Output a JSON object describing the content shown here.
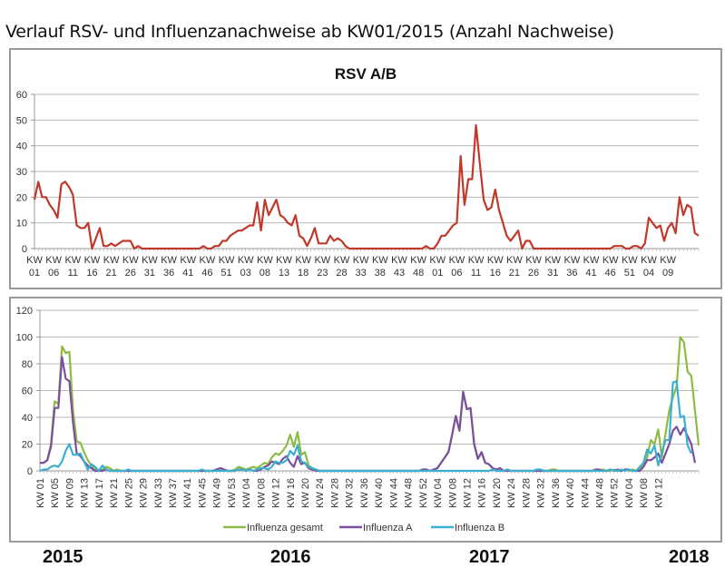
{
  "page": {
    "title": "Verlauf RSV- und Influenzanachweise ab KW01/2015 (Anzahl Nachweise)",
    "years": [
      "2015",
      "2016",
      "2017",
      "2018"
    ]
  },
  "colors": {
    "rsv": "#c0392b",
    "influenza_gesamt": "#8dbb45",
    "influenza_a": "#7b4f9e",
    "influenza_b": "#3ab0d0",
    "grid": "#b8b8b8",
    "axis_text": "#333333"
  },
  "chart_data": [
    {
      "type": "line",
      "title": "RSV A/B",
      "xlabel": "",
      "ylabel": "",
      "ylim": [
        0,
        60
      ],
      "yticks": [
        "0",
        "10",
        "20",
        "30",
        "40",
        "50",
        "60"
      ],
      "grid": true,
      "x_tick_labels": [
        "KW 01",
        "KW 06",
        "KW 11",
        "KW 16",
        "KW 21",
        "KW 26",
        "KW 31",
        "KW 36",
        "KW 41",
        "KW 46",
        "KW 51",
        "KW 03",
        "KW 08",
        "KW 13",
        "KW 18",
        "KW 23",
        "KW 28",
        "KW 33",
        "KW 38",
        "KW 43",
        "KW 48",
        "KW 01",
        "KW 06",
        "KW 11",
        "KW 16",
        "KW 21",
        "KW 26",
        "KW 31",
        "KW 36",
        "KW 41",
        "KW 46",
        "KW 51",
        "KW 04",
        "KW 09"
      ],
      "x_tick_every_weeks": 5,
      "series": [
        {
          "name": "RSV A/B",
          "values": [
            19,
            26,
            20,
            20,
            17,
            15,
            12,
            25,
            26,
            24,
            21,
            9,
            8,
            8,
            10,
            0,
            4,
            8,
            1,
            1,
            2,
            1,
            2,
            3,
            3,
            3,
            0,
            1,
            0,
            0,
            0,
            0,
            0,
            0,
            0,
            0,
            0,
            0,
            0,
            0,
            0,
            0,
            0,
            0,
            1,
            0,
            0,
            1,
            1,
            3,
            3,
            5,
            6,
            7,
            7,
            8,
            9,
            9,
            18,
            7,
            19,
            13,
            16,
            19,
            13,
            12,
            10,
            9,
            13,
            5,
            4,
            1,
            4,
            8,
            2,
            2,
            2,
            5,
            3,
            4,
            3,
            1,
            0,
            0,
            0,
            0,
            0,
            0,
            0,
            0,
            0,
            0,
            0,
            0,
            0,
            0,
            0,
            0,
            0,
            0,
            0,
            0,
            1,
            0,
            0,
            2,
            5,
            5,
            7,
            9,
            10,
            36,
            17,
            27,
            27,
            48,
            33,
            19,
            15,
            16,
            23,
            15,
            10,
            5,
            3,
            5,
            7,
            0,
            3,
            3,
            0,
            0,
            0,
            0,
            0,
            0,
            0,
            0,
            0,
            0,
            0,
            0,
            0,
            0,
            0,
            0,
            0,
            0,
            0,
            0,
            0,
            1,
            1,
            1,
            0,
            0,
            1,
            1,
            0,
            2,
            12,
            10,
            8,
            9,
            3,
            8,
            10,
            6,
            20,
            13,
            17,
            16,
            6,
            5
          ]
        }
      ]
    },
    {
      "type": "line",
      "title": "",
      "xlabel": "",
      "ylabel": "",
      "ylim": [
        0,
        120
      ],
      "yticks": [
        "0",
        "20",
        "40",
        "60",
        "80",
        "100",
        "120"
      ],
      "grid": true,
      "legend": "bottom",
      "x_tick_labels": [
        "KW 01",
        "KW 05",
        "KW 09",
        "KW 13",
        "KW 17",
        "KW 21",
        "KW 25",
        "KW 29",
        "KW 33",
        "KW 37",
        "KW 41",
        "KW 45",
        "KW 49",
        "KW 53",
        "KW 04",
        "KW 08",
        "KW 12",
        "KW 16",
        "KW 20",
        "KW 24",
        "KW 28",
        "KW 32",
        "KW 36",
        "KW 40",
        "KW 44",
        "KW 48",
        "KW 52",
        "KW 04",
        "KW 08",
        "KW 12",
        "KW 16",
        "KW 20",
        "KW 24",
        "KW 28",
        "KW 32",
        "KW 36",
        "KW 40",
        "KW 44",
        "KW 48",
        "KW 52",
        "KW 04",
        "KW 08",
        "KW 12"
      ],
      "x_tick_every_weeks": 4,
      "series": [
        {
          "name": "Influenza gesamt",
          "values": [
            6,
            6,
            8,
            20,
            52,
            50,
            93,
            88,
            89,
            45,
            22,
            21,
            14,
            8,
            4,
            2,
            0,
            1,
            3,
            2,
            0,
            1,
            0,
            0,
            0,
            0,
            0,
            0,
            0,
            0,
            0,
            0,
            0,
            0,
            0,
            0,
            0,
            0,
            0,
            0,
            0,
            0,
            0,
            0,
            0,
            0,
            0,
            0,
            1,
            2,
            1,
            0,
            0,
            1,
            3,
            2,
            1,
            2,
            3,
            2,
            4,
            6,
            5,
            10,
            13,
            12,
            15,
            19,
            27,
            18,
            29,
            12,
            14,
            4,
            2,
            1,
            0,
            0,
            0,
            0,
            0,
            0,
            0,
            0,
            0,
            0,
            0,
            0,
            0,
            0,
            0,
            0,
            0,
            0,
            0,
            0,
            0,
            0,
            0,
            0,
            0,
            0,
            0,
            0,
            1,
            1,
            0,
            1,
            2,
            6,
            10,
            14,
            27,
            41,
            30,
            59,
            46,
            47,
            20,
            9,
            14,
            6,
            5,
            2,
            1,
            2,
            0,
            1,
            0,
            0,
            0,
            0,
            0,
            0,
            0,
            0,
            0,
            0,
            0,
            1,
            1,
            0,
            0,
            0,
            0,
            0,
            0,
            0,
            0,
            0,
            0,
            0,
            0,
            1,
            0,
            0,
            1,
            0,
            0,
            1,
            0,
            1,
            0,
            1,
            4,
            10,
            23,
            20,
            31,
            10,
            28,
            45,
            55,
            63,
            100,
            96,
            74,
            71,
            45,
            19
          ]
        },
        {
          "name": "Influenza A",
          "values": [
            6,
            6,
            8,
            18,
            47,
            47,
            85,
            69,
            67,
            36,
            13,
            11,
            7,
            4,
            2,
            0,
            0,
            0,
            1,
            0,
            0,
            0,
            0,
            0,
            0,
            0,
            0,
            0,
            0,
            0,
            0,
            0,
            0,
            0,
            0,
            0,
            0,
            0,
            0,
            0,
            0,
            0,
            0,
            0,
            0,
            0,
            0,
            0,
            1,
            2,
            1,
            0,
            0,
            0,
            1,
            1,
            0,
            1,
            0,
            0,
            1,
            3,
            4,
            7,
            6,
            5,
            9,
            11,
            6,
            3,
            11,
            5,
            6,
            2,
            1,
            0,
            0,
            0,
            0,
            0,
            0,
            0,
            0,
            0,
            0,
            0,
            0,
            0,
            0,
            0,
            0,
            0,
            0,
            0,
            0,
            0,
            0,
            0,
            0,
            0,
            0,
            0,
            0,
            0,
            1,
            1,
            0,
            1,
            2,
            6,
            10,
            14,
            27,
            41,
            30,
            59,
            46,
            47,
            20,
            9,
            14,
            6,
            5,
            2,
            1,
            2,
            0,
            0,
            0,
            0,
            0,
            0,
            0,
            0,
            0,
            0,
            0,
            0,
            0,
            0,
            0,
            0,
            0,
            0,
            0,
            0,
            0,
            0,
            0,
            0,
            0,
            1,
            1,
            0,
            0,
            1,
            0,
            1,
            0,
            1,
            1,
            0,
            0,
            0,
            3,
            8,
            8,
            10,
            13,
            6,
            13,
            20,
            30,
            33,
            27,
            32,
            26,
            20,
            6
          ]
        },
        {
          "name": "Influenza B",
          "values": [
            0,
            1,
            1,
            3,
            4,
            3,
            7,
            15,
            20,
            12,
            12,
            13,
            7,
            1,
            5,
            3,
            0,
            4,
            1,
            0,
            0,
            0,
            0,
            0,
            1,
            0,
            0,
            0,
            0,
            0,
            0,
            0,
            0,
            0,
            0,
            0,
            0,
            0,
            0,
            0,
            0,
            0,
            0,
            0,
            1,
            0,
            0,
            0,
            0,
            0,
            0,
            0,
            0,
            0,
            1,
            1,
            0,
            1,
            0,
            1,
            2,
            2,
            1,
            3,
            7,
            6,
            6,
            8,
            15,
            12,
            19,
            7,
            6,
            3,
            2,
            1,
            0,
            0,
            0,
            0,
            0,
            0,
            0,
            0,
            0,
            0,
            0,
            0,
            0,
            0,
            0,
            0,
            0,
            0,
            0,
            0,
            0,
            0,
            0,
            0,
            0,
            0,
            0,
            0,
            0,
            0,
            0,
            0,
            0,
            0,
            0,
            0,
            0,
            0,
            0,
            0,
            0,
            0,
            0,
            0,
            0,
            0,
            0,
            1,
            0,
            0,
            0,
            1,
            0,
            0,
            0,
            0,
            0,
            0,
            0,
            1,
            1,
            0,
            0,
            0,
            0,
            0,
            0,
            0,
            0,
            0,
            0,
            0,
            0,
            0,
            0,
            0,
            0,
            0,
            0,
            1,
            0,
            0,
            1,
            0,
            1,
            0,
            0,
            3,
            6,
            16,
            13,
            19,
            4,
            14,
            23,
            23,
            66,
            67,
            40,
            41,
            19,
            13
          ]
        }
      ]
    }
  ]
}
